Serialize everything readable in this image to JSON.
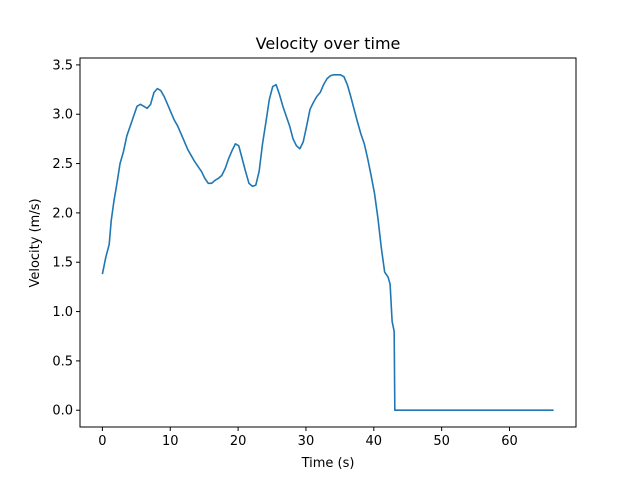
{
  "chart_data": {
    "type": "line",
    "title": "Velocity over time",
    "xlabel": "Time (s)",
    "ylabel": "Velocity (m/s)",
    "xlim": [
      -3.3,
      69.8
    ],
    "ylim": [
      -0.17,
      3.57
    ],
    "xticks": [
      0,
      10,
      20,
      30,
      40,
      50,
      60
    ],
    "yticks": [
      0.0,
      0.5,
      1.0,
      1.5,
      2.0,
      2.5,
      3.0,
      3.5
    ],
    "xtick_labels": [
      "0",
      "10",
      "20",
      "30",
      "40",
      "50",
      "60"
    ],
    "ytick_labels": [
      "0.0",
      "0.5",
      "1.0",
      "1.5",
      "2.0",
      "2.5",
      "3.0",
      "3.5"
    ],
    "grid": false,
    "color": "#1f77b4",
    "series": [
      {
        "name": "velocity",
        "x": [
          0.0,
          0.5,
          1.0,
          1.3,
          1.7,
          2.1,
          2.6,
          3.1,
          3.6,
          4.1,
          4.6,
          5.1,
          5.6,
          6.1,
          6.6,
          7.1,
          7.6,
          8.1,
          8.6,
          9.1,
          9.6,
          10.1,
          10.6,
          11.1,
          11.6,
          12.1,
          12.6,
          13.1,
          13.6,
          14.1,
          14.6,
          15.1,
          15.6,
          16.1,
          16.6,
          17.1,
          17.6,
          18.1,
          18.6,
          19.1,
          19.6,
          20.1,
          20.6,
          21.1,
          21.6,
          22.1,
          22.6,
          23.1,
          23.6,
          24.1,
          24.6,
          25.1,
          25.6,
          26.1,
          26.6,
          27.1,
          27.6,
          28.1,
          28.6,
          29.1,
          29.6,
          30.1,
          30.6,
          31.1,
          31.6,
          32.1,
          32.6,
          33.1,
          33.6,
          34.1,
          34.6,
          35.1,
          35.6,
          36.1,
          36.6,
          37.1,
          37.6,
          38.1,
          38.6,
          39.1,
          39.6,
          40.1,
          40.6,
          41.1,
          41.6,
          42.1,
          42.4,
          42.7,
          43.0,
          43.1,
          43.2,
          43.3,
          50.0,
          60.0,
          66.5
        ],
        "y": [
          1.38,
          1.55,
          1.68,
          1.92,
          2.12,
          2.28,
          2.5,
          2.62,
          2.78,
          2.88,
          2.98,
          3.08,
          3.1,
          3.08,
          3.06,
          3.1,
          3.22,
          3.26,
          3.24,
          3.18,
          3.1,
          3.02,
          2.94,
          2.88,
          2.8,
          2.72,
          2.64,
          2.58,
          2.52,
          2.47,
          2.42,
          2.35,
          2.3,
          2.3,
          2.33,
          2.35,
          2.38,
          2.45,
          2.55,
          2.63,
          2.7,
          2.68,
          2.55,
          2.42,
          2.3,
          2.27,
          2.28,
          2.42,
          2.7,
          2.92,
          3.15,
          3.28,
          3.3,
          3.2,
          3.08,
          2.98,
          2.88,
          2.75,
          2.68,
          2.65,
          2.72,
          2.88,
          3.05,
          3.12,
          3.18,
          3.22,
          3.3,
          3.36,
          3.39,
          3.4,
          3.4,
          3.4,
          3.38,
          3.3,
          3.18,
          3.05,
          2.92,
          2.8,
          2.7,
          2.55,
          2.38,
          2.2,
          1.95,
          1.65,
          1.4,
          1.35,
          1.28,
          0.9,
          0.8,
          0.0,
          0.0,
          0.0,
          0.0,
          0.0,
          0.0
        ]
      }
    ]
  }
}
